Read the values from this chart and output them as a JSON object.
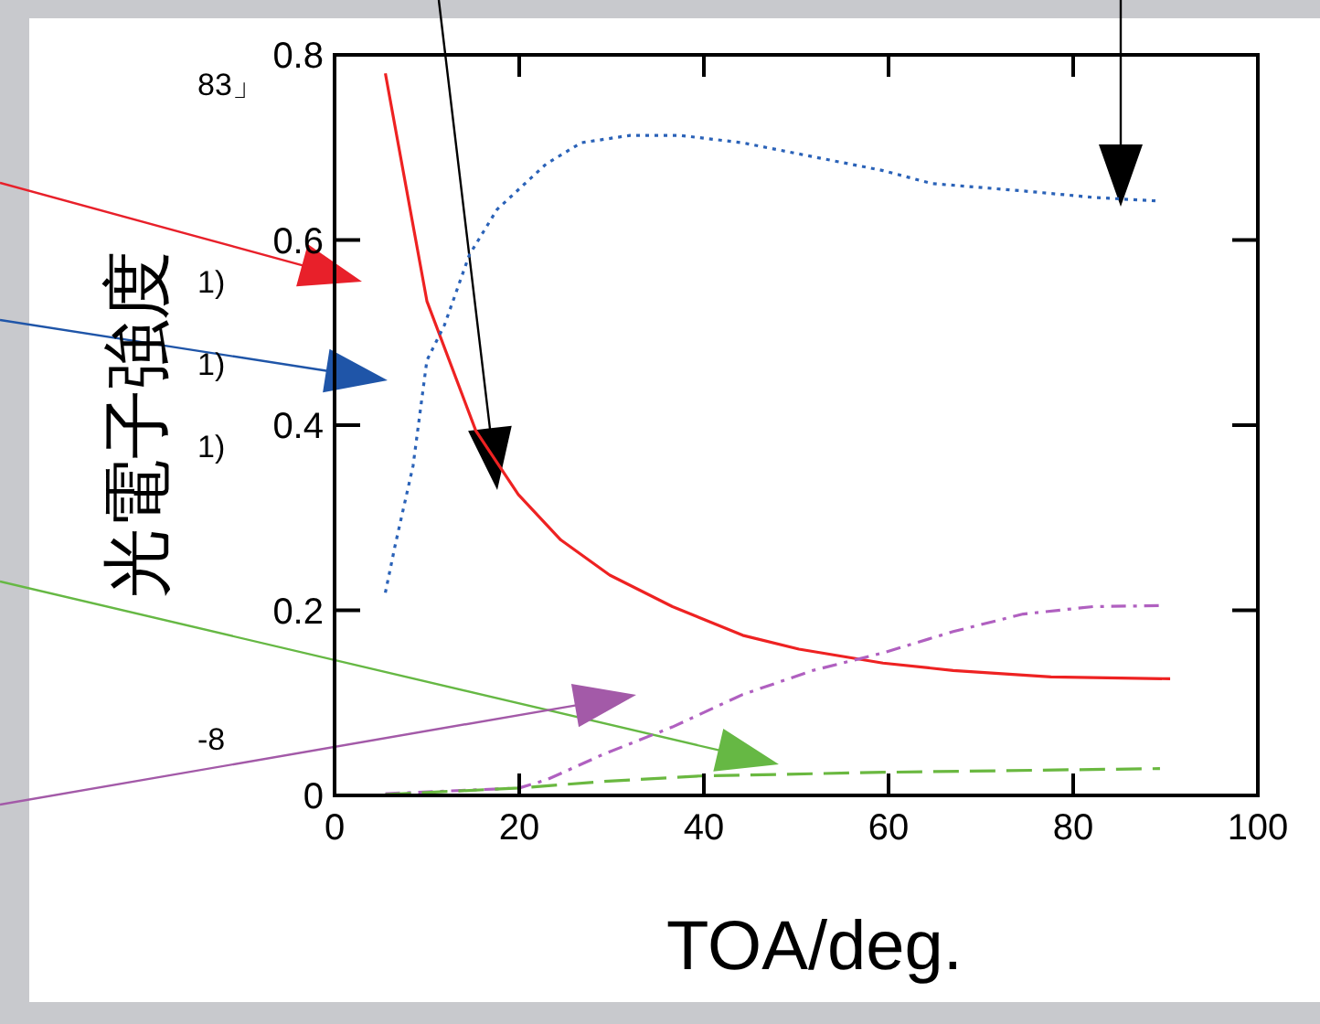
{
  "chart_data": {
    "type": "line",
    "xlabel": "TOA/deg.",
    "ylabel": "光電子強度",
    "xlim": [
      0,
      100
    ],
    "ylim": [
      0,
      0.8
    ],
    "xticks": [
      0,
      20,
      40,
      60,
      80,
      100
    ],
    "yticks": [
      0,
      0.2,
      0.4,
      0.6,
      0.8
    ],
    "grid": false,
    "marker": "none",
    "annotations": [
      "83」",
      "1)",
      "1)",
      "1)",
      "-8"
    ],
    "series": [
      {
        "color": "#ee2222",
        "line_style": "solid",
        "x": [
          5.5,
          10,
          15.3,
          19.9,
          24.5,
          29.8,
          36.6,
          44.2,
          50.3,
          59.4,
          67,
          77.6,
          90.5
        ],
        "values": [
          0.78,
          0.534,
          0.394,
          0.325,
          0.276,
          0.238,
          0.204,
          0.173,
          0.158,
          0.143,
          0.135,
          0.128,
          0.126
        ]
      },
      {
        "color": "#2a62b8",
        "line_style": "dotted",
        "x": [
          5.5,
          6.6,
          8.5,
          10,
          11.9,
          14.6,
          17.6,
          22.9,
          26.7,
          32,
          37.4,
          44.2,
          51.8,
          59.4,
          64.7,
          74.6,
          82.2,
          89.4
        ],
        "values": [
          0.219,
          0.272,
          0.356,
          0.47,
          0.508,
          0.584,
          0.633,
          0.682,
          0.705,
          0.713,
          0.713,
          0.705,
          0.69,
          0.675,
          0.661,
          0.653,
          0.646,
          0.642
        ]
      },
      {
        "color": "#b060c0",
        "line_style": "dashdot",
        "x": [
          5.5,
          20,
          23,
          29,
          36.6,
          44.2,
          51.8,
          59.4,
          67,
          74.6,
          82.2,
          89.4
        ],
        "values": [
          0.002,
          0.008,
          0.017,
          0.044,
          0.074,
          0.109,
          0.135,
          0.154,
          0.177,
          0.196,
          0.204,
          0.205
        ]
      },
      {
        "color": "#6ab840",
        "line_style": "dashed",
        "x": [
          5.5,
          20,
          29,
          39.6,
          59.4,
          89.4
        ],
        "values": [
          0.001,
          0.008,
          0.015,
          0.021,
          0.025,
          0.029
        ]
      }
    ]
  }
}
